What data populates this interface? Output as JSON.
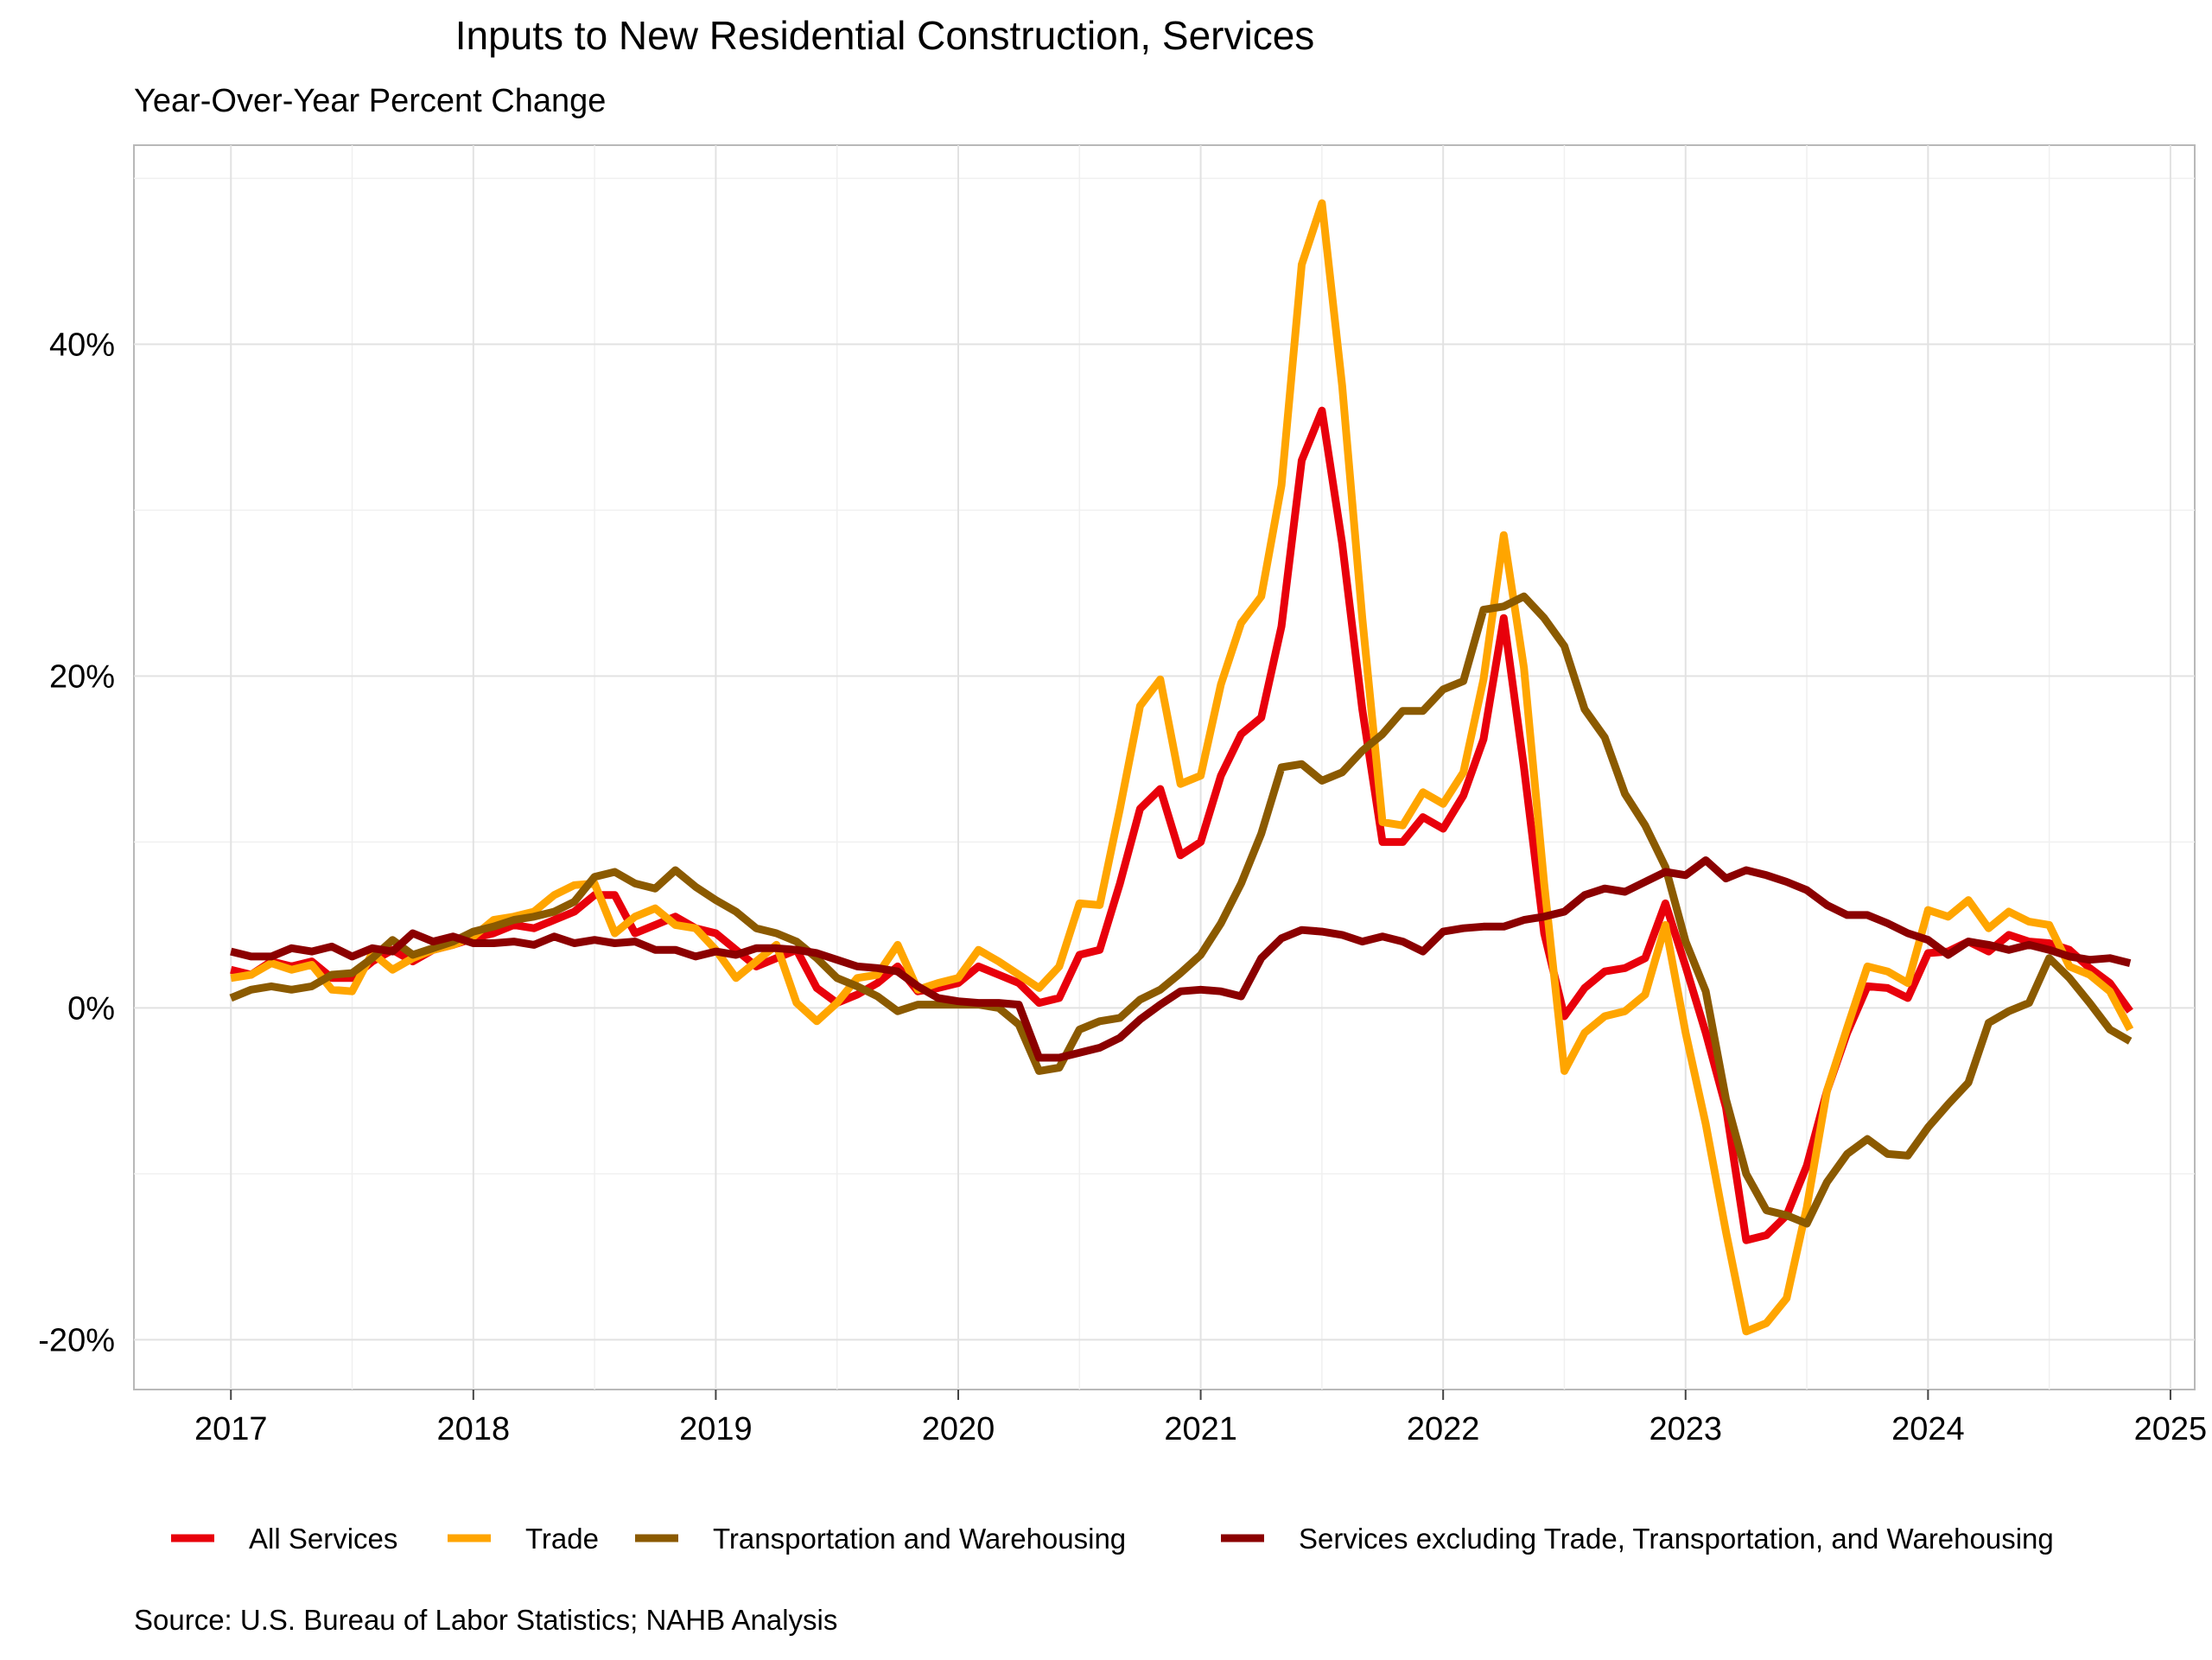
{
  "title": "Inputs to New Residential Construction, Services",
  "subtitle": "Year-Over-Year Percent Change",
  "source": "Source: U.S. Bureau of Labor Statistics; NAHB Analysis",
  "chart_data": {
    "type": "line",
    "title": "Inputs to New Residential Construction, Services",
    "subtitle": "Year-Over-Year Percent Change",
    "xlabel": "",
    "ylabel": "",
    "x_start": "2017-01",
    "x_frequency": "monthly",
    "xlim": [
      2016.6,
      2025.1
    ],
    "ylim": [
      -23,
      52
    ],
    "x_ticks": [
      "2017",
      "2018",
      "2019",
      "2020",
      "2021",
      "2022",
      "2023",
      "2024",
      "2025"
    ],
    "y_ticks": [
      "-20%",
      "0%",
      "20%",
      "40%"
    ],
    "y_tick_values": [
      -20,
      0,
      20,
      40
    ],
    "grid": true,
    "legend_position": "bottom",
    "series": [
      {
        "name": "All Services",
        "color": "#E8000B",
        "values": [
          2.3,
          2.0,
          2.8,
          2.5,
          2.8,
          1.8,
          1.8,
          2.8,
          3.5,
          2.8,
          3.5,
          3.8,
          4.2,
          4.5,
          5.0,
          4.8,
          5.3,
          5.8,
          6.8,
          6.8,
          4.5,
          5.0,
          5.5,
          4.8,
          4.5,
          3.5,
          2.5,
          3.0,
          3.5,
          1.2,
          0.3,
          0.8,
          1.5,
          2.5,
          1.0,
          1.2,
          1.5,
          2.5,
          2.0,
          1.5,
          0.3,
          0.6,
          3.2,
          3.5,
          7.5,
          12.0,
          13.2,
          9.2,
          10.0,
          14.0,
          16.5,
          17.5,
          23.0,
          33.0,
          36.0,
          28.0,
          18.0,
          10.0,
          10.0,
          11.5,
          10.8,
          12.8,
          16.2,
          23.5,
          14.5,
          4.5,
          -0.5,
          1.2,
          2.2,
          2.4,
          3.0,
          6.3,
          2.5,
          -1.5,
          -6.0,
          -14.0,
          -13.7,
          -12.5,
          -9.5,
          -5.0,
          -1.5,
          1.3,
          1.2,
          0.6,
          3.3,
          3.4,
          4.0,
          3.4,
          4.4,
          4.0,
          3.9,
          3.5,
          2.4,
          1.5,
          -0.2
        ]
      },
      {
        "name": "Trade",
        "color": "#FFA500",
        "values": [
          1.8,
          2.0,
          2.7,
          2.3,
          2.6,
          1.1,
          1.0,
          3.3,
          2.3,
          3.0,
          3.5,
          3.8,
          4.3,
          5.3,
          5.5,
          5.8,
          6.8,
          7.4,
          7.5,
          4.5,
          5.5,
          6.0,
          5.0,
          4.8,
          3.5,
          1.8,
          2.8,
          3.8,
          0.3,
          -0.8,
          0.3,
          1.8,
          2.0,
          3.8,
          1.1,
          1.5,
          1.8,
          3.5,
          2.8,
          2.0,
          1.2,
          2.5,
          6.3,
          6.2,
          12.0,
          18.2,
          19.8,
          13.5,
          14.0,
          19.5,
          23.2,
          24.8,
          31.5,
          44.8,
          48.5,
          37.5,
          23.5,
          11.2,
          11.0,
          13.0,
          12.3,
          14.2,
          19.8,
          28.5,
          20.5,
          7.5,
          -3.8,
          -1.5,
          -0.5,
          -0.2,
          0.8,
          5.0,
          -1.5,
          -7.0,
          -13.5,
          -19.5,
          -19.0,
          -17.5,
          -12.0,
          -5.0,
          -1.2,
          2.5,
          2.2,
          1.5,
          5.9,
          5.5,
          6.5,
          4.8,
          5.8,
          5.2,
          5.0,
          2.5,
          2.0,
          1.0,
          -1.3
        ]
      },
      {
        "name": "Transportation and Warehousing",
        "color": "#8B5A00",
        "values": [
          0.6,
          1.1,
          1.3,
          1.1,
          1.3,
          2.0,
          2.1,
          3.0,
          4.1,
          3.2,
          3.6,
          4.0,
          4.6,
          4.9,
          5.3,
          5.5,
          5.8,
          6.4,
          7.9,
          8.2,
          7.5,
          7.2,
          8.3,
          7.3,
          6.5,
          5.8,
          4.8,
          4.5,
          4.0,
          3.0,
          1.8,
          1.3,
          0.7,
          -0.2,
          0.2,
          0.2,
          0.2,
          0.2,
          0.0,
          -1.0,
          -3.8,
          -3.6,
          -1.3,
          -0.8,
          -0.6,
          0.5,
          1.1,
          2.1,
          3.2,
          5.1,
          7.5,
          10.5,
          14.5,
          14.7,
          13.7,
          14.2,
          15.5,
          16.5,
          17.9,
          17.9,
          19.2,
          19.7,
          24.0,
          24.2,
          24.8,
          23.5,
          21.8,
          18.0,
          16.3,
          12.9,
          11.0,
          8.5,
          4.0,
          1.0,
          -5.5,
          -10.0,
          -12.2,
          -12.5,
          -13.0,
          -10.5,
          -8.8,
          -7.9,
          -8.8,
          -8.9,
          -7.2,
          -5.8,
          -4.5,
          -0.9,
          -0.2,
          0.3,
          3.0,
          1.8,
          0.3,
          -1.3,
          -2.0
        ]
      },
      {
        "name": "Services excluding Trade, Transportation, and Warehousing",
        "color": "#8B0000",
        "values": [
          3.4,
          3.1,
          3.1,
          3.6,
          3.4,
          3.7,
          3.1,
          3.6,
          3.4,
          4.5,
          4.0,
          4.3,
          3.9,
          3.9,
          4.0,
          3.8,
          4.3,
          3.9,
          4.1,
          3.9,
          4.0,
          3.5,
          3.5,
          3.1,
          3.4,
          3.2,
          3.6,
          3.6,
          3.5,
          3.3,
          2.9,
          2.5,
          2.4,
          2.2,
          1.3,
          0.6,
          0.4,
          0.3,
          0.3,
          0.2,
          -3.0,
          -3.0,
          -2.7,
          -2.4,
          -1.8,
          -0.7,
          0.2,
          1.0,
          1.1,
          1.0,
          0.7,
          3.0,
          4.2,
          4.7,
          4.6,
          4.4,
          4.0,
          4.3,
          4.0,
          3.4,
          4.6,
          4.8,
          4.9,
          4.9,
          5.3,
          5.5,
          5.8,
          6.8,
          7.2,
          7.0,
          7.6,
          8.2,
          8.0,
          8.9,
          7.8,
          8.3,
          8.0,
          7.6,
          7.1,
          6.2,
          5.6,
          5.6,
          5.1,
          4.5,
          4.1,
          3.2,
          4.0,
          3.8,
          3.5,
          3.8,
          3.5,
          3.1,
          2.9,
          3.0,
          2.7
        ]
      }
    ]
  }
}
